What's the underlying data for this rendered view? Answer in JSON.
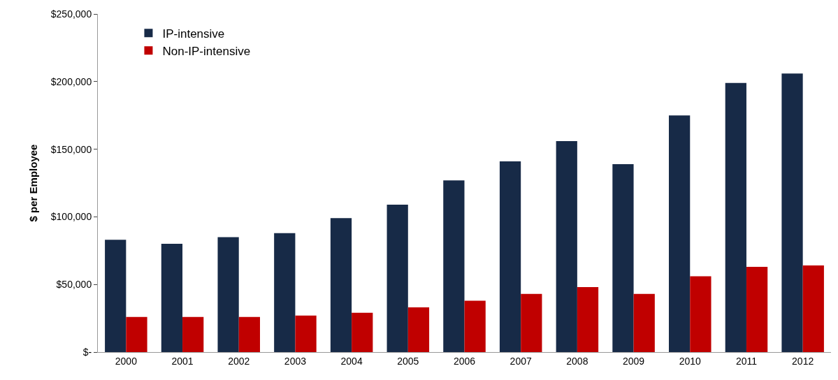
{
  "chart_data": {
    "type": "bar",
    "ylabel": "$ per Employee",
    "categories": [
      "2000",
      "2001",
      "2002",
      "2003",
      "2004",
      "2005",
      "2006",
      "2007",
      "2008",
      "2009",
      "2010",
      "2011",
      "2012"
    ],
    "series": [
      {
        "name": "IP-intensive",
        "color": "#172a47",
        "values": [
          83000,
          80000,
          85000,
          88000,
          99000,
          109000,
          127000,
          141000,
          156000,
          139000,
          175000,
          199000,
          206000
        ]
      },
      {
        "name": "Non-IP-intensive",
        "color": "#c00000",
        "values": [
          26000,
          26000,
          26000,
          27000,
          29000,
          33000,
          38000,
          43000,
          48000,
          43000,
          56000,
          63000,
          64000
        ]
      }
    ],
    "ylim": [
      0,
      250000
    ],
    "yticks": [
      {
        "value": 0,
        "label": "$-"
      },
      {
        "value": 50000,
        "label": "$50,000"
      },
      {
        "value": 100000,
        "label": "$100,000"
      },
      {
        "value": 150000,
        "label": "$150,000"
      },
      {
        "value": 200000,
        "label": "$200,000"
      },
      {
        "value": 250000,
        "label": "$250,000"
      }
    ],
    "legend": "top left"
  }
}
